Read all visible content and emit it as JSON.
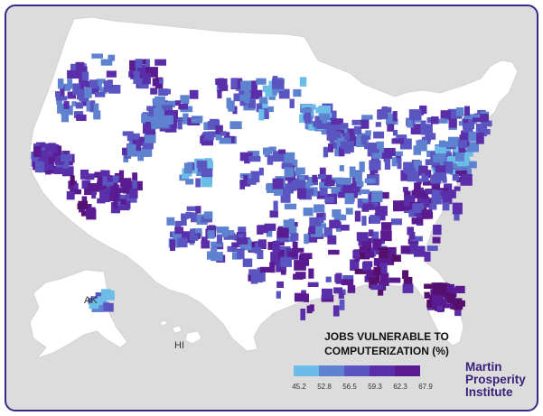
{
  "map": {
    "labels": {
      "alaska": "AK",
      "hawaii": "HI"
    }
  },
  "legend": {
    "title_line1": "JOBS VULNERABLE TO",
    "title_line2": "COMPUTERIZATION (%)",
    "breaks": [
      "45.2",
      "52.8",
      "56.5",
      "59.3",
      "62.3",
      "67.9"
    ],
    "colors": [
      "#6bbde8",
      "#5f82d0",
      "#5a55c0",
      "#5a2ea8",
      "#5a1a90",
      "#54106c"
    ]
  },
  "brand": {
    "line1": "Martin",
    "line2": "Prosperity",
    "line3": "Institute"
  }
}
